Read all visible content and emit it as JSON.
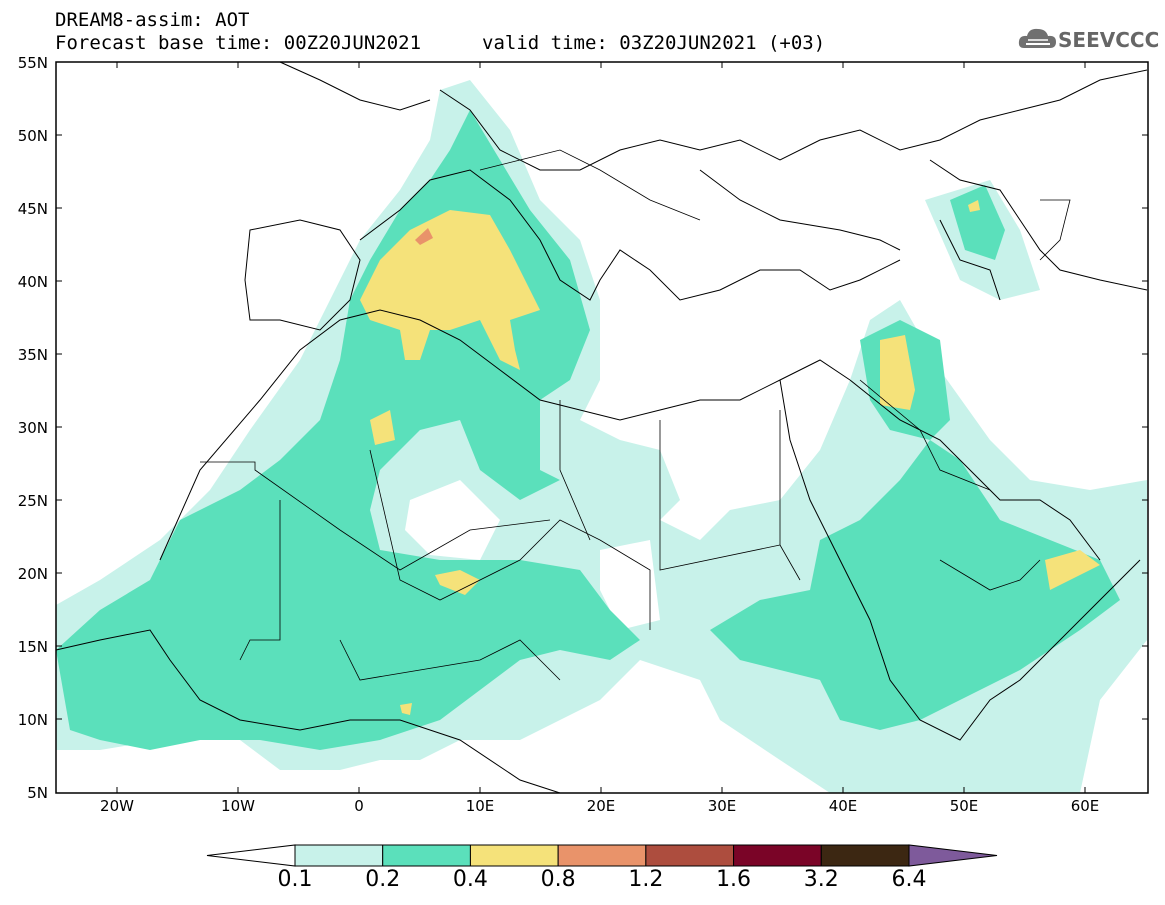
{
  "header": {
    "title_line1": "DREAM8-assim: AOT",
    "title_line2": "Forecast base time: 00Z20JUN2021",
    "valid_time": "valid time: 03Z20JUN2021 (+03)",
    "logo_text": "SEEVCCC",
    "logo_icon": "cloud-icon"
  },
  "map": {
    "projection": "lat-lon",
    "lon_range": [
      -25,
      65
    ],
    "lat_range": [
      5,
      55
    ],
    "lat_labels": [
      "55N",
      "50N",
      "45N",
      "40N",
      "35N",
      "30N",
      "25N",
      "20N",
      "15N",
      "10N",
      "5N"
    ],
    "lon_labels": [
      "20W",
      "10W",
      "0",
      "10E",
      "20E",
      "30E",
      "40E",
      "50E",
      "60E"
    ]
  },
  "colorbar": {
    "labels": [
      "0.1",
      "0.2",
      "0.4",
      "0.8",
      "1.2",
      "1.6",
      "3.2",
      "6.4"
    ],
    "colors": [
      "#ffffff",
      "#c8f2ea",
      "#5be0bb",
      "#f5e27a",
      "#e9936a",
      "#ad4d3e",
      "#7a0427",
      "#3c2712",
      "#7e5a9b"
    ]
  }
}
